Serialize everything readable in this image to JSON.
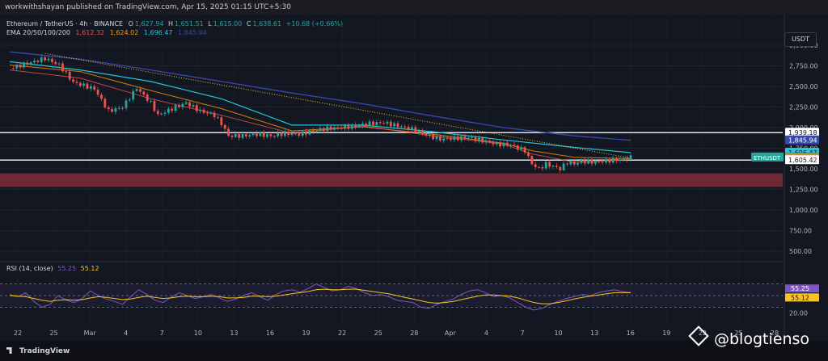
{
  "header": {
    "publish_text": "workwithshayan published on TradingView.com, Apr 15, 2025 01:15 UTC+5:30"
  },
  "legend": {
    "symbol": "Ethereum / TetherUS · 4h · BINANCE",
    "o_label": "O",
    "o": "1,627.94",
    "h_label": "H",
    "h": "1,651.51",
    "l_label": "L",
    "l": "1,615.00",
    "c_label": "C",
    "c": "1,638.61",
    "change": "+10.68 (+0.66%)",
    "ema_label": "EMA 20/50/100/200",
    "ema20": "1,612.32",
    "ema50": "1,624.02",
    "ema100": "1,696.47",
    "ema200": "1,845.94"
  },
  "rsi_legend": {
    "label": "RSI (14, close)",
    "rsi": "55.25",
    "ma": "55.12"
  },
  "currency_button": "USDT",
  "footer": {
    "brand": "TradingView"
  },
  "watermark": {
    "text": "@blogtienso"
  },
  "colors": {
    "ema20": "#ef5350",
    "ema50": "#ff9800",
    "ema100": "#26c6da",
    "ema200": "#3949ab",
    "candle_up": "#26a69a",
    "candle_down": "#ef5350",
    "zone": "#7b2a38",
    "rsi": "#7e57c2",
    "rsi_ma": "#f7c325"
  },
  "chart_data": {
    "type": "candlestick",
    "symbol": "ETHUSDT",
    "ylim": [
      500,
      3000
    ],
    "y_ticks": [
      500,
      750,
      1000,
      1250,
      1500,
      1750,
      2000,
      2250,
      2500,
      2750,
      3000
    ],
    "y_tick_labels": [
      "500.00",
      "750.00",
      "1,000.00",
      "1,250.00",
      "1,500.00",
      "1,750.00",
      "2,000.00",
      "2,250.00",
      "2,500.00",
      "2,750.00",
      "3,000.00"
    ],
    "x_tick_labels": [
      "22",
      "25",
      "Mar",
      "4",
      "7",
      "10",
      "13",
      "16",
      "19",
      "22",
      "25",
      "28",
      "Apr",
      "4",
      "7",
      "10",
      "13",
      "16",
      "19",
      "22",
      "25",
      "28"
    ],
    "price_path": [
      [
        0,
        2720
      ],
      [
        3,
        2790
      ],
      [
        5,
        2840
      ],
      [
        7,
        2760
      ],
      [
        9,
        2550
      ],
      [
        12,
        2470
      ],
      [
        14,
        2200
      ],
      [
        16,
        2250
      ],
      [
        18,
        2480
      ],
      [
        20,
        2300
      ],
      [
        21,
        2150
      ],
      [
        23,
        2230
      ],
      [
        25,
        2300
      ],
      [
        27,
        2200
      ],
      [
        29,
        2150
      ],
      [
        30,
        2050
      ],
      [
        31,
        1900
      ],
      [
        33,
        1900
      ],
      [
        35,
        1920
      ],
      [
        37,
        1900
      ],
      [
        39,
        1930
      ],
      [
        41,
        1920
      ],
      [
        43,
        1960
      ],
      [
        45,
        1990
      ],
      [
        47,
        2000
      ],
      [
        49,
        2020
      ],
      [
        51,
        2050
      ],
      [
        53,
        2060
      ],
      [
        55,
        2020
      ],
      [
        57,
        1980
      ],
      [
        59,
        1910
      ],
      [
        61,
        1860
      ],
      [
        63,
        1870
      ],
      [
        65,
        1880
      ],
      [
        67,
        1840
      ],
      [
        69,
        1800
      ],
      [
        71,
        1790
      ],
      [
        73,
        1720
      ],
      [
        74,
        1560
      ],
      [
        75,
        1500
      ],
      [
        76,
        1560
      ],
      [
        77,
        1530
      ],
      [
        78,
        1500
      ],
      [
        79,
        1580
      ],
      [
        80,
        1560
      ],
      [
        81,
        1590
      ],
      [
        83,
        1580
      ],
      [
        85,
        1600
      ],
      [
        87,
        1620
      ],
      [
        88,
        1639
      ]
    ],
    "ema20": [
      [
        0,
        2700
      ],
      [
        10,
        2600
      ],
      [
        20,
        2350
      ],
      [
        30,
        2150
      ],
      [
        40,
        1930
      ],
      [
        50,
        2020
      ],
      [
        60,
        1900
      ],
      [
        70,
        1800
      ],
      [
        74,
        1680
      ],
      [
        80,
        1580
      ],
      [
        88,
        1612
      ]
    ],
    "ema50": [
      [
        0,
        2760
      ],
      [
        10,
        2680
      ],
      [
        20,
        2450
      ],
      [
        30,
        2230
      ],
      [
        40,
        1960
      ],
      [
        50,
        2010
      ],
      [
        60,
        1920
      ],
      [
        70,
        1810
      ],
      [
        74,
        1720
      ],
      [
        80,
        1640
      ],
      [
        88,
        1624
      ]
    ],
    "ema100": [
      [
        0,
        2800
      ],
      [
        10,
        2700
      ],
      [
        20,
        2560
      ],
      [
        30,
        2350
      ],
      [
        40,
        2030
      ],
      [
        50,
        2030
      ],
      [
        60,
        1950
      ],
      [
        70,
        1850
      ],
      [
        80,
        1760
      ],
      [
        88,
        1696
      ]
    ],
    "ema200": [
      [
        0,
        2920
      ],
      [
        10,
        2830
      ],
      [
        20,
        2700
      ],
      [
        30,
        2560
      ],
      [
        40,
        2420
      ],
      [
        50,
        2290
      ],
      [
        60,
        2140
      ],
      [
        70,
        2000
      ],
      [
        80,
        1900
      ],
      [
        88,
        1846
      ]
    ],
    "levels": [
      {
        "label": "1,939.18",
        "value": 1939.18
      },
      {
        "label": "1,605.42",
        "value": 1605.42
      }
    ],
    "zone": [
      1280,
      1445
    ],
    "price_labels": [
      {
        "text": "1,939.18",
        "value": 1939.18,
        "bg": "#ffffff",
        "fg": "#131722"
      },
      {
        "text": "1,845.94",
        "value": 1845.94,
        "bg": "#3949ab",
        "fg": "#ffffff"
      },
      {
        "text": "1,696.47",
        "value": 1696.47,
        "bg": "#26c6da",
        "fg": "#131722"
      },
      {
        "text": "1,638.61",
        "value": 1638.61,
        "bg": "#26a69a",
        "fg": "#ffffff"
      },
      {
        "text": "1,624.02",
        "value": 1624.02,
        "bg": "#ff9800",
        "fg": "#131722"
      },
      {
        "text": "1,612.32",
        "value": 1612.32,
        "bg": "#ef5350",
        "fg": "#ffffff"
      },
      {
        "text": "1,605.42",
        "value": 1605.42,
        "bg": "#ffffff",
        "fg": "#131722"
      }
    ],
    "symbol_tag": "ETHUSDT",
    "rsi": {
      "ylim": [
        0,
        100
      ],
      "y_tick_labels": [
        "20.00"
      ],
      "bands": [
        30,
        70
      ],
      "values": [
        52,
        48,
        55,
        40,
        30,
        35,
        50,
        42,
        38,
        45,
        58,
        50,
        44,
        40,
        35,
        48,
        60,
        52,
        42,
        38,
        47,
        55,
        50,
        45,
        48,
        52,
        46,
        40,
        44,
        50,
        55,
        48,
        42,
        52,
        58,
        60,
        56,
        62,
        70,
        64,
        58,
        60,
        66,
        62,
        55,
        50,
        52,
        48,
        42,
        40,
        38,
        30,
        28,
        35,
        40,
        44,
        52,
        58,
        60,
        55,
        48,
        50,
        46,
        38,
        30,
        25,
        28,
        35,
        40,
        45,
        48,
        52,
        50,
        55,
        58,
        60,
        57,
        55
      ],
      "ma_values": [
        50,
        49,
        48,
        45,
        42,
        40,
        42,
        43,
        42,
        43,
        46,
        48,
        47,
        45,
        43,
        44,
        47,
        49,
        47,
        45,
        46,
        48,
        49,
        48,
        48,
        49,
        48,
        46,
        46,
        47,
        49,
        49,
        48,
        49,
        51,
        53,
        55,
        57,
        60,
        61,
        60,
        60,
        61,
        61,
        59,
        57,
        55,
        53,
        50,
        47,
        44,
        41,
        38,
        37,
        38,
        40,
        43,
        46,
        49,
        51,
        51,
        50,
        49,
        46,
        42,
        38,
        36,
        36,
        38,
        41,
        44,
        47,
        49,
        51,
        53,
        55,
        55,
        55
      ],
      "current_rsi": "55.25",
      "current_ma": "55.12"
    }
  }
}
